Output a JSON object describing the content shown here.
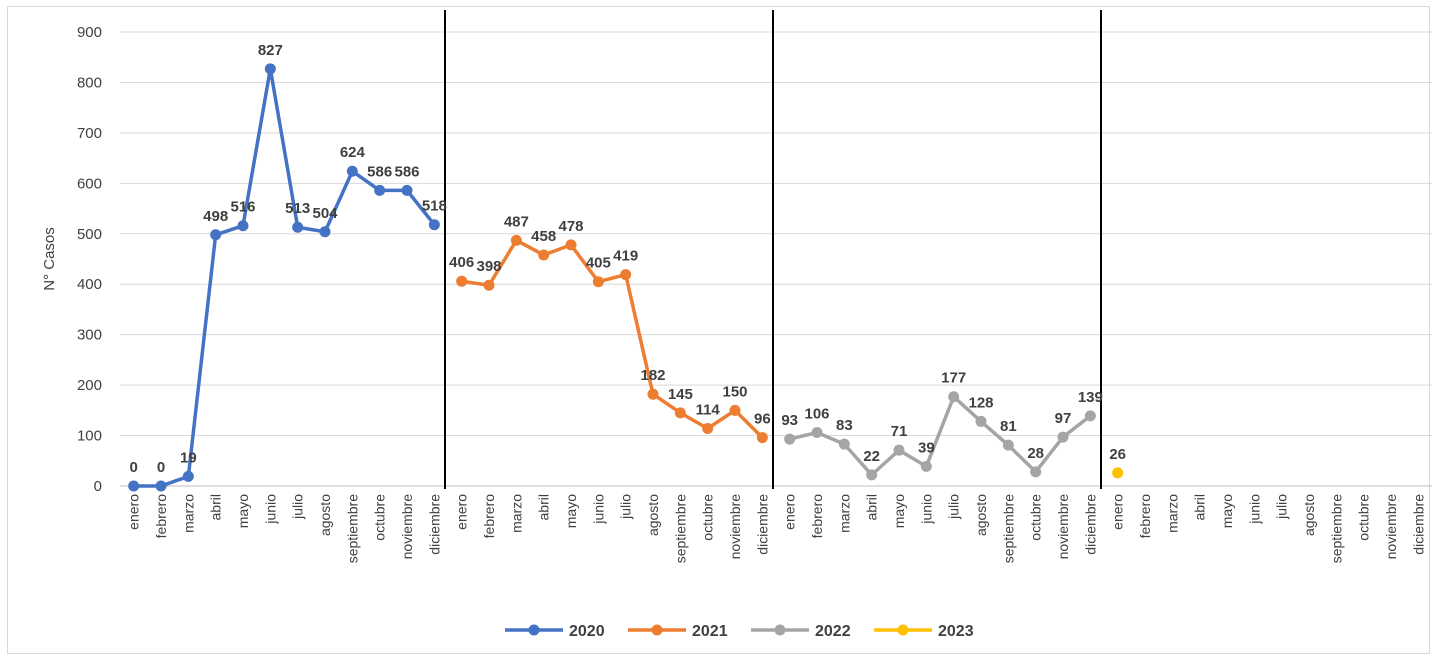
{
  "chart_data": {
    "type": "line",
    "title": "",
    "xlabel": "",
    "ylabel": "N° Casos",
    "ylim": [
      0,
      900
    ],
    "yticks": [
      0,
      100,
      200,
      300,
      400,
      500,
      600,
      700,
      800,
      900
    ],
    "grid": true,
    "legend_position": "bottom",
    "month_labels": [
      "enero",
      "febrero",
      "marzo",
      "abril",
      "mayo",
      "junio",
      "julio",
      "agosto",
      "septiembre",
      "octubre",
      "noviembre",
      "diciembre"
    ],
    "series": [
      {
        "name": "2020",
        "color": "#4472C4",
        "values": [
          0,
          0,
          19,
          498,
          516,
          827,
          513,
          504,
          624,
          586,
          586,
          518
        ],
        "labels": [
          "0",
          "0",
          "19",
          "498",
          "516",
          "827",
          "513",
          "504",
          "624",
          "586",
          "586",
          "518"
        ]
      },
      {
        "name": "2021",
        "color": "#ED7D31",
        "values": [
          406,
          398,
          487,
          458,
          478,
          405,
          419,
          182,
          145,
          114,
          150,
          96
        ],
        "labels": [
          "406",
          "398",
          "487",
          "458",
          "478",
          "405",
          "419",
          "182",
          "145",
          "114",
          "150",
          "96"
        ]
      },
      {
        "name": "2022",
        "color": "#A5A5A5",
        "values": [
          93,
          106,
          83,
          22,
          71,
          39,
          177,
          128,
          81,
          28,
          97,
          139
        ],
        "labels": [
          "93",
          "106",
          "83",
          "22",
          "71",
          "39",
          "177",
          "128",
          "81",
          "28",
          "97",
          "139"
        ]
      },
      {
        "name": "2023",
        "color": "#FFC000",
        "values": [
          26,
          null,
          null,
          null,
          null,
          null,
          null,
          null,
          null,
          null,
          null,
          null
        ],
        "labels": [
          "26",
          null,
          null,
          null,
          null,
          null,
          null,
          null,
          null,
          null,
          null,
          null
        ]
      }
    ]
  }
}
